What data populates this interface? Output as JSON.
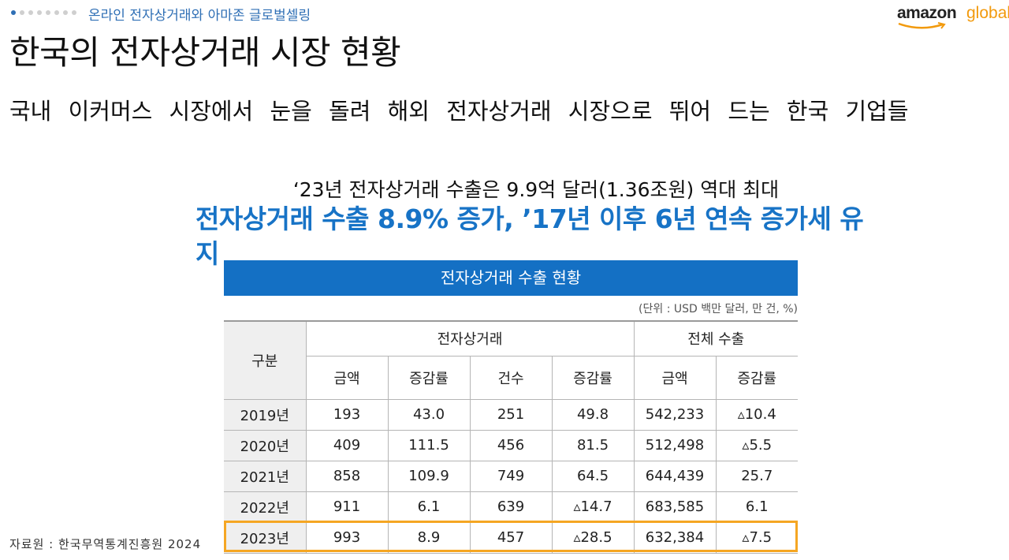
{
  "header": {
    "breadcrumb": "온라인 전자상거래와 아마존 글로벌셀링",
    "logo_text": "amazon global"
  },
  "page": {
    "title": "한국의 전자상거래 시장 현황",
    "subtitle": "국내 이커머스 시장에서 눈을 돌려 해외 전자상거래 시장으로 뛰어 드는 한국 기업들"
  },
  "headline": {
    "line1": "‘23년 전자상거래 수출은 9.9억 달러(1.36조원) 역대 최대",
    "line2": "전자상거래 수출 8.9% 증가, ’17년 이후 6년 연속 증가세 유지"
  },
  "table": {
    "caption": "전자상거래 수출 현황",
    "unit": "(단위 : USD 백만 달러, 만 건, %)",
    "group_headers": {
      "category": "구분",
      "ecommerce": "전자상거래",
      "total_export": "전체 수출"
    },
    "sub_headers": [
      "금액",
      "증감률",
      "건수",
      "증감률",
      "금액",
      "증감률"
    ],
    "rows": [
      [
        "2019년",
        "193",
        "43.0",
        "251",
        "49.8",
        "542,233",
        "▵10.4"
      ],
      [
        "2020년",
        "409",
        "111.5",
        "456",
        "81.5",
        "512,498",
        "▵5.5"
      ],
      [
        "2021년",
        "858",
        "109.9",
        "749",
        "64.5",
        "644,439",
        "25.7"
      ],
      [
        "2022년",
        "911",
        "6.1",
        "639",
        "▵14.7",
        "683,585",
        "6.1"
      ],
      [
        "2023년",
        "993",
        "8.9",
        "457",
        "▵28.5",
        "632,384",
        "▵7.5"
      ]
    ],
    "highlight_row_label": "2023년"
  },
  "footer": {
    "source": "자료원 : 한국무역통계진흥원 2024"
  },
  "colors": {
    "brand_blue": "#1470c4",
    "headline_blue": "#1773c6",
    "highlight_orange": "#f5a623"
  }
}
